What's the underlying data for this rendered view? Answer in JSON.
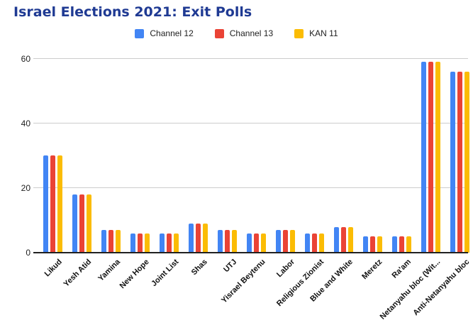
{
  "title": "Israel Elections 2021: Exit Polls",
  "colors": {
    "title": "#1f3a93",
    "axis_line": "#212121",
    "gridline": "#cccccc",
    "background": "#ffffff",
    "channel12": "#4285F4",
    "channel13": "#EA4335",
    "kan11": "#FBBC04"
  },
  "chart_data": {
    "type": "bar",
    "title": "Israel Elections 2021: Exit Polls",
    "xlabel": "",
    "ylabel": "",
    "ylim": [
      0,
      62
    ],
    "yticks": [
      0,
      20,
      40,
      60
    ],
    "grid": true,
    "legend_position": "top-center",
    "categories": [
      "Likud",
      "Yesh Atid",
      "Yamina",
      "New Hope",
      "Joint List",
      "Shas",
      "UTJ",
      "Yisrael Beytenu",
      "Labor",
      "Religious Zionist",
      "Blue and White",
      "Meretz",
      "Ra'am",
      "Netanyahu bloc (Wit...",
      "Anti-Netanyahu bloc"
    ],
    "series": [
      {
        "name": "Channel 12",
        "color": "#4285F4",
        "values": [
          30,
          18,
          7,
          6,
          6,
          9,
          7,
          6,
          7,
          6,
          8,
          5,
          5,
          59,
          56
        ]
      },
      {
        "name": "Channel 13",
        "color": "#EA4335",
        "values": [
          30,
          18,
          7,
          6,
          6,
          9,
          7,
          6,
          7,
          6,
          8,
          5,
          5,
          59,
          56
        ]
      },
      {
        "name": "KAN 11",
        "color": "#FBBC04",
        "values": [
          30,
          18,
          7,
          6,
          6,
          9,
          7,
          6,
          7,
          6,
          8,
          5,
          5,
          59,
          56
        ]
      }
    ]
  }
}
